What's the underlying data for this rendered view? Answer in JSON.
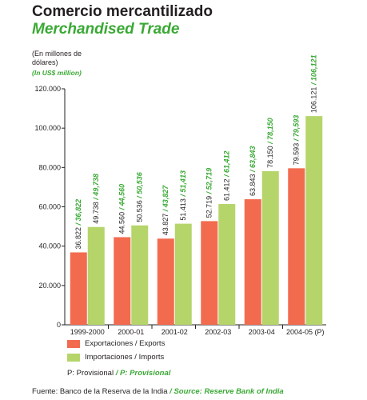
{
  "title_es": "Comercio mercantilizado",
  "title_en": "Merchandised Trade",
  "unit_es": "(En millones de dólares)",
  "unit_en": "(In US$ million)",
  "colors": {
    "exports": "#f26b4f",
    "imports": "#b5d56a",
    "green_text": "#3aa935",
    "axis": "#231f20"
  },
  "legend": {
    "exports": "Exportaciones / Exports",
    "imports": "Importaciones / Imports"
  },
  "note": {
    "es": "P: Provisional",
    "sep": " / ",
    "en": "P: Provisional"
  },
  "source": {
    "es": "Fuente: Banco de la Reserva de la India",
    "sep": " / ",
    "en": "Source: Reserve Bank of India"
  },
  "chart_data": {
    "type": "bar",
    "categories": [
      "1999-2000",
      "2000-01",
      "2001-02",
      "2002-03",
      "2003-04",
      "2004-05 (P)"
    ],
    "series": [
      {
        "name": "Exportaciones / Exports",
        "values": [
          36822,
          44560,
          43827,
          52719,
          63843,
          79593
        ]
      },
      {
        "name": "Importaciones / Imports",
        "values": [
          49738,
          50536,
          51413,
          61412,
          78150,
          106121
        ]
      }
    ],
    "labels": {
      "exports_es": [
        "36.822",
        "44.560",
        "43.827",
        "52.719",
        "63.843",
        "79.593"
      ],
      "exports_en": [
        "36,822",
        "44,560",
        "43,827",
        "52,719",
        "63,843",
        "79,593"
      ],
      "imports_es": [
        "49.738",
        "50.536",
        "51.413",
        "61.412",
        "78.150",
        "106.121"
      ],
      "imports_en": [
        "49,738",
        "50,536",
        "51,413",
        "61,412",
        "78,150",
        "106,121"
      ],
      "sep": " / "
    },
    "yticks": [
      0,
      20000,
      40000,
      60000,
      80000,
      100000,
      120000
    ],
    "ytick_labels": [
      "0",
      "20.000",
      "40.000",
      "60.000",
      "80.000",
      "100.000",
      "120.000"
    ],
    "ylim": [
      0,
      120000
    ],
    "grid": false
  }
}
